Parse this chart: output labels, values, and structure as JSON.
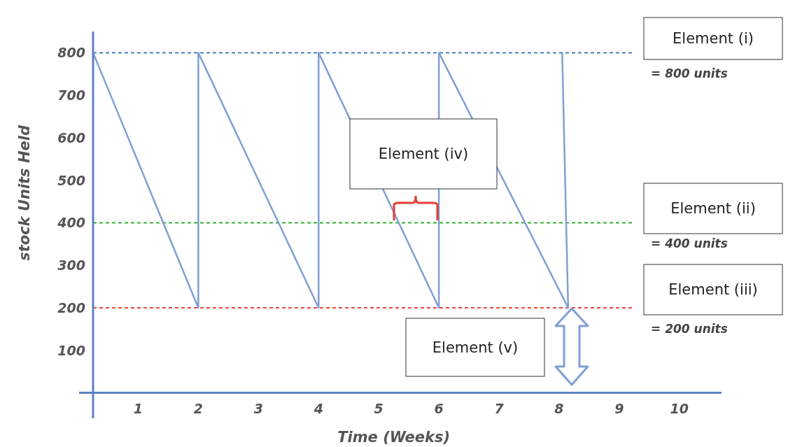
{
  "chart_data": {
    "type": "line",
    "xlabel": "Time (Weeks)",
    "ylabel": "stock Units Held",
    "series": [
      {
        "color": "#7f9fd3",
        "x": [
          0.25,
          2,
          2,
          4,
          4,
          6,
          6,
          8.15,
          8.05
        ],
        "values": [
          800,
          200,
          800,
          200,
          800,
          200,
          800,
          200,
          800
        ]
      }
    ],
    "xlim": [
      0.25,
      10.7
    ],
    "ylim": [
      -60,
      850
    ],
    "xticks": [
      1,
      2,
      3,
      4,
      5,
      6,
      7,
      8,
      9,
      10
    ],
    "yticks": [
      100,
      200,
      300,
      400,
      500,
      600,
      700,
      800
    ],
    "ref_lines": [
      {
        "axis": "y",
        "value": 800,
        "label": "= 800 units",
        "color": "#4a7bc0",
        "line_style": "dashed"
      },
      {
        "axis": "y",
        "value": 400,
        "label": "= 400 units",
        "color": "#33b033",
        "line_style": "dashed"
      },
      {
        "axis": "y",
        "value": 200,
        "label": "= 200 units",
        "color": "#e8473a",
        "line_style": "dashed"
      }
    ],
    "annotations": [
      "Element (i)",
      "Element (ii)",
      "Element (iii)",
      "Element (iv)",
      "Element (v)"
    ],
    "marker": "none",
    "line_style": "solid",
    "grid": false
  }
}
